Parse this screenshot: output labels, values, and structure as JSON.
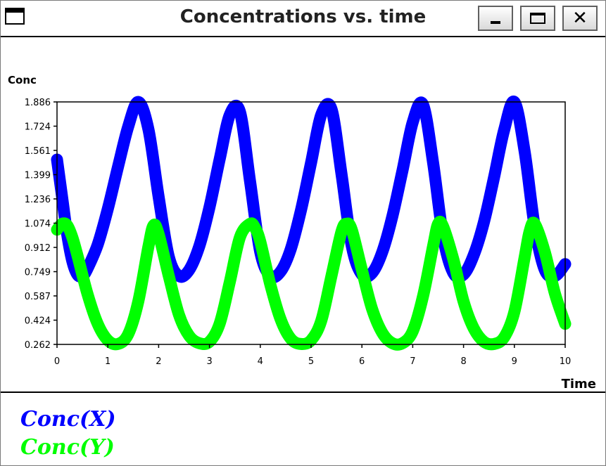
{
  "window": {
    "title": "Concentrations vs. time",
    "controls": {
      "minimize_icon": "minimize-icon",
      "maximize_icon": "maximize-icon",
      "close_icon": "close-icon"
    },
    "close_glyph": "✕"
  },
  "chart_data": {
    "type": "line",
    "ylabel": "Conc",
    "xlabel": "Time",
    "xlim": [
      0,
      10
    ],
    "ylim": [
      0.262,
      1.886
    ],
    "x_ticks": [
      "0",
      "1",
      "2",
      "3",
      "4",
      "5",
      "6",
      "7",
      "8",
      "9",
      "10"
    ],
    "y_ticks": [
      "0.262",
      "0.424",
      "0.587",
      "0.749",
      "0.912",
      "1.074",
      "1.236",
      "1.399",
      "1.561",
      "1.724",
      "1.886"
    ],
    "grid": false,
    "legend_position": "bottom-left",
    "series": [
      {
        "name": "Conc(X)",
        "color": "#0000ff",
        "x": [
          0,
          0.1,
          0.2,
          0.3,
          0.4,
          0.5,
          0.6,
          0.8,
          1.0,
          1.2,
          1.4,
          1.6,
          1.8,
          2.0,
          2.2,
          2.4,
          2.6,
          2.8,
          3.0,
          3.2,
          3.4,
          3.6,
          3.8,
          4.0,
          4.2,
          4.4,
          4.6,
          4.8,
          5.0,
          5.2,
          5.4,
          5.6,
          5.8,
          6.0,
          6.2,
          6.4,
          6.6,
          6.8,
          7.0,
          7.2,
          7.4,
          7.6,
          7.8,
          8.0,
          8.2,
          8.4,
          8.6,
          8.8,
          9.0,
          9.2,
          9.4,
          9.6,
          9.8,
          10.0
        ],
        "y": [
          1.5,
          1.25,
          1.0,
          0.82,
          0.73,
          0.72,
          0.77,
          0.93,
          1.17,
          1.45,
          1.72,
          1.886,
          1.7,
          1.25,
          0.85,
          0.72,
          0.76,
          0.92,
          1.18,
          1.5,
          1.8,
          1.82,
          1.35,
          0.88,
          0.72,
          0.75,
          0.9,
          1.16,
          1.48,
          1.8,
          1.84,
          1.4,
          0.92,
          0.73,
          0.74,
          0.88,
          1.12,
          1.43,
          1.75,
          1.87,
          1.48,
          0.98,
          0.74,
          0.73,
          0.86,
          1.08,
          1.38,
          1.7,
          1.886,
          1.56,
          1.05,
          0.76,
          0.72,
          0.8
        ]
      },
      {
        "name": "Conc(Y)",
        "color": "#00ff00",
        "x": [
          0,
          0.1,
          0.2,
          0.3,
          0.4,
          0.6,
          0.8,
          1.0,
          1.2,
          1.4,
          1.6,
          1.8,
          1.9,
          2.0,
          2.2,
          2.4,
          2.6,
          2.8,
          3.0,
          3.2,
          3.4,
          3.6,
          3.8,
          3.9,
          4.0,
          4.2,
          4.4,
          4.6,
          4.8,
          5.0,
          5.2,
          5.4,
          5.6,
          5.7,
          5.8,
          6.0,
          6.2,
          6.4,
          6.6,
          6.8,
          7.0,
          7.2,
          7.4,
          7.5,
          7.6,
          7.8,
          8.0,
          8.2,
          8.4,
          8.6,
          8.8,
          9.0,
          9.2,
          9.3,
          9.4,
          9.6,
          9.8,
          10.0
        ],
        "y": [
          1.03,
          1.07,
          1.06,
          0.98,
          0.86,
          0.6,
          0.4,
          0.29,
          0.265,
          0.33,
          0.55,
          0.92,
          1.06,
          1.0,
          0.72,
          0.46,
          0.32,
          0.27,
          0.28,
          0.4,
          0.68,
          0.98,
          1.07,
          1.04,
          0.95,
          0.66,
          0.43,
          0.3,
          0.265,
          0.29,
          0.42,
          0.72,
          1.02,
          1.07,
          1.03,
          0.76,
          0.5,
          0.34,
          0.27,
          0.27,
          0.35,
          0.58,
          0.92,
          1.07,
          1.05,
          0.83,
          0.55,
          0.37,
          0.28,
          0.265,
          0.31,
          0.48,
          0.84,
          1.02,
          1.07,
          0.88,
          0.6,
          0.4
        ]
      }
    ]
  }
}
